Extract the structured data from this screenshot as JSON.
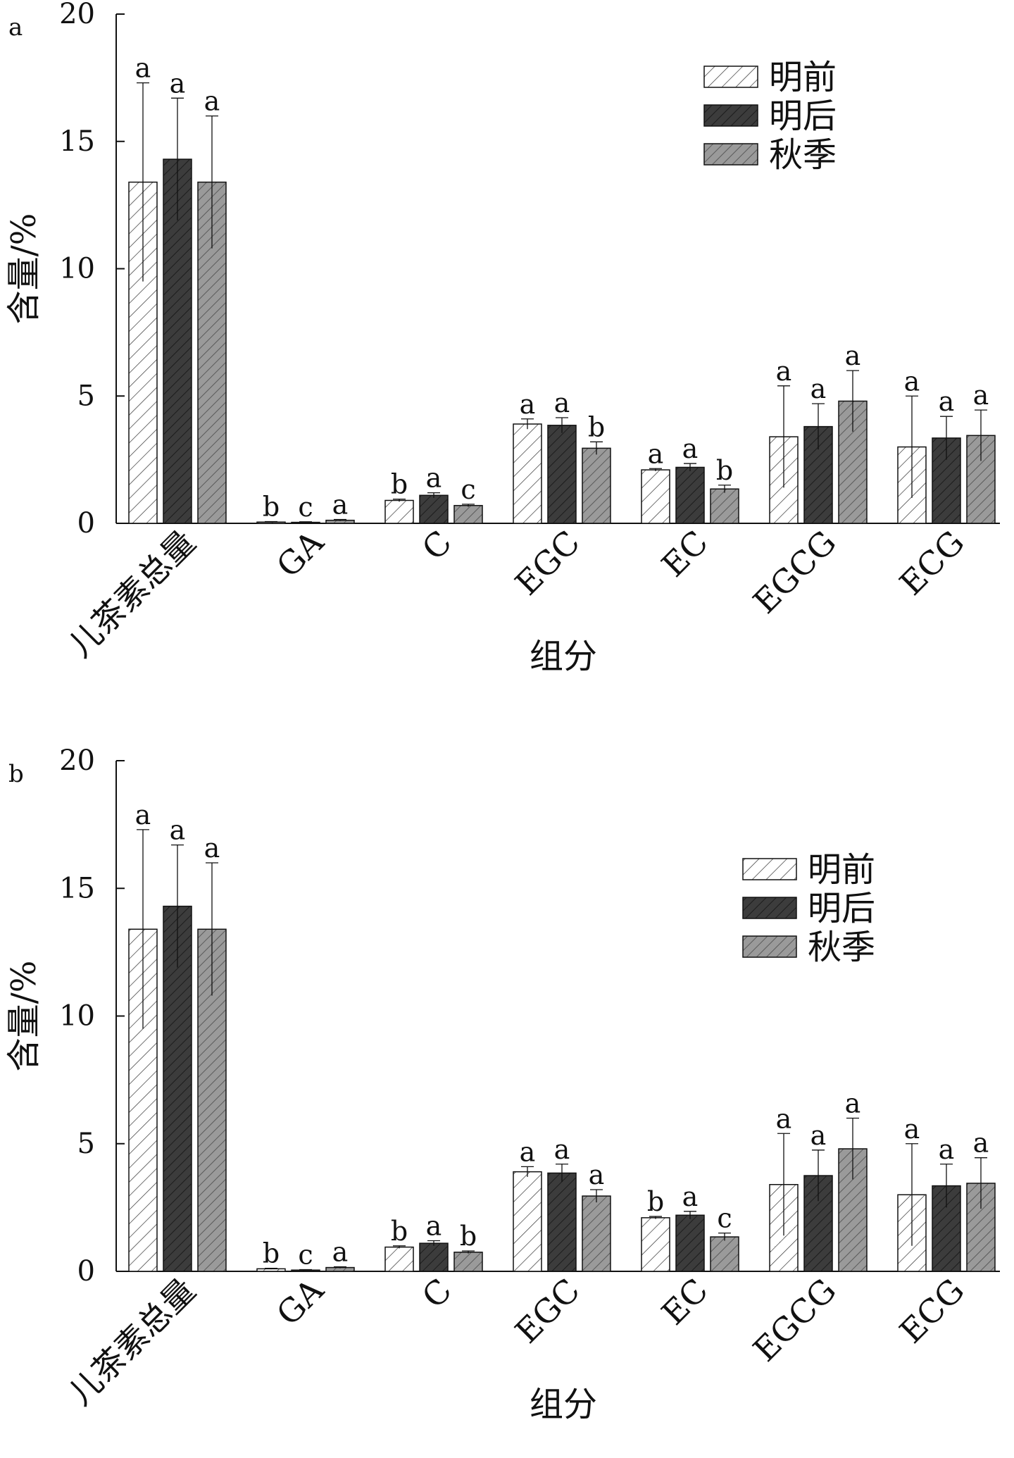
{
  "colors": {
    "axis": "#111111",
    "light_fill": "#ffffff",
    "dark_fill": "#3c3c3c",
    "mid_fill": "#9a9a9a"
  },
  "chart_data": [
    {
      "panel": "a",
      "type": "bar",
      "xlabel": "组分",
      "ylabel": "含量/%",
      "ylim": [
        0,
        20
      ],
      "yticks": [
        0,
        5,
        10,
        15,
        20
      ],
      "legend_position": "top-right",
      "categories": [
        "儿茶素总量",
        "GA",
        "C",
        "EGC",
        "EC",
        "EGCG",
        "ECG"
      ],
      "series": [
        {
          "name": "明前",
          "values": [
            13.4,
            0.05,
            0.9,
            3.9,
            2.1,
            3.4,
            3.0
          ],
          "errors": [
            3.9,
            0.02,
            0.05,
            0.2,
            0.05,
            2.0,
            2.0
          ],
          "labels": [
            "a",
            "b",
            "b",
            "a",
            "a",
            "a",
            "a"
          ]
        },
        {
          "name": "明后",
          "values": [
            14.3,
            0.04,
            1.1,
            3.85,
            2.2,
            3.8,
            3.35
          ],
          "errors": [
            2.4,
            0.02,
            0.1,
            0.3,
            0.15,
            0.9,
            0.85
          ],
          "labels": [
            "a",
            "c",
            "a",
            "a",
            "a",
            "a",
            "a"
          ]
        },
        {
          "name": "秋季",
          "values": [
            13.4,
            0.12,
            0.7,
            2.95,
            1.35,
            4.8,
            3.45
          ],
          "errors": [
            2.6,
            0.03,
            0.05,
            0.25,
            0.15,
            1.2,
            1.0
          ],
          "labels": [
            "a",
            "a",
            "c",
            "b",
            "b",
            "a",
            "a"
          ]
        }
      ]
    },
    {
      "panel": "b",
      "type": "bar",
      "xlabel": "组分",
      "ylabel": "含量/%",
      "ylim": [
        0,
        20
      ],
      "yticks": [
        0,
        5,
        10,
        15,
        20
      ],
      "legend_position": "top-right",
      "categories": [
        "儿茶素总量",
        "GA",
        "C",
        "EGC",
        "EC",
        "EGCG",
        "ECG"
      ],
      "series": [
        {
          "name": "明前",
          "values": [
            13.4,
            0.1,
            0.95,
            3.9,
            2.1,
            3.4,
            3.0
          ],
          "errors": [
            3.9,
            0.02,
            0.05,
            0.2,
            0.05,
            2.0,
            2.0
          ],
          "labels": [
            "a",
            "b",
            "b",
            "a",
            "b",
            "a",
            "a"
          ]
        },
        {
          "name": "明后",
          "values": [
            14.3,
            0.05,
            1.1,
            3.85,
            2.2,
            3.75,
            3.35
          ],
          "errors": [
            2.4,
            0.02,
            0.1,
            0.35,
            0.15,
            1.0,
            0.85
          ],
          "labels": [
            "a",
            "c",
            "a",
            "a",
            "a",
            "a",
            "a"
          ]
        },
        {
          "name": "秋季",
          "values": [
            13.4,
            0.15,
            0.75,
            2.95,
            1.35,
            4.8,
            3.45
          ],
          "errors": [
            2.6,
            0.03,
            0.05,
            0.25,
            0.15,
            1.2,
            1.0
          ],
          "labels": [
            "a",
            "a",
            "b",
            "a",
            "c",
            "a",
            "a"
          ]
        }
      ]
    }
  ]
}
